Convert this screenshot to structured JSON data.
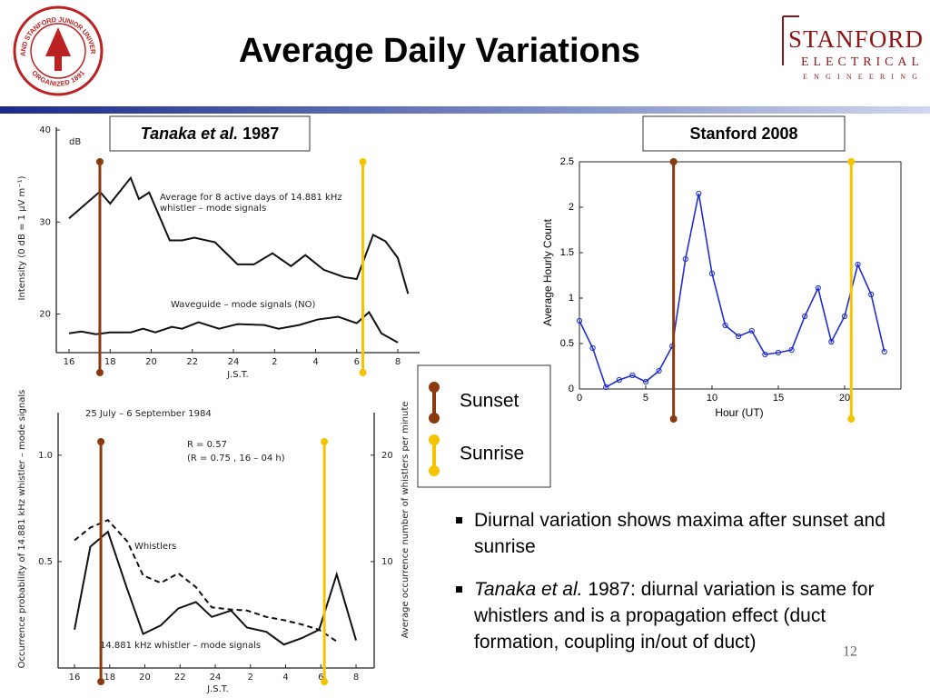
{
  "header": {
    "title": "Average Daily Variations",
    "seal_top": "LELAND STANFORD JUNIOR UNIVERSITY",
    "seal_bottom": "ORGANIZED 1891",
    "logo_line1": "STANFORD",
    "logo_line2": "ELECTRICAL",
    "logo_line3": "ENGINEERING"
  },
  "panels": [
    {
      "italic": "Tanaka et al.",
      "text": " 1987"
    },
    {
      "text": "Stanford 2008"
    }
  ],
  "legend": [
    {
      "label": "Sunset",
      "color": "#8b3a0f"
    },
    {
      "label": "Sunrise",
      "color": "#f5c400"
    }
  ],
  "bullets": [
    {
      "text": "Diurnal variation shows maxima after sunset and sunrise"
    },
    {
      "italic": "Tanaka et al.",
      "text": " 1987: diurnal variation is same for whistlers  and is a  propagation effect  (duct formation, coupling in/out of duct)"
    }
  ],
  "page_number": "12",
  "chart_data": [
    {
      "type": "line",
      "unit": "dB",
      "xlabel": "J.S.T.",
      "ylabel": "Intensity (0 dB = 1 μV m⁻¹)",
      "xlim": [
        15.38,
        33.06
      ],
      "ylim": [
        15.8,
        40.3
      ],
      "xticks": [
        16,
        18,
        20,
        22,
        24,
        {
          "value": 26,
          "label": "2"
        },
        {
          "value": 28,
          "label": "4"
        },
        {
          "value": 30,
          "label": "6"
        },
        {
          "value": 32,
          "label": "8"
        }
      ],
      "yticks": [
        20,
        30,
        40
      ],
      "frame": [
        "left",
        "bottom"
      ],
      "series": [
        {
          "name": "Average for 8 active days of 14.881 kHz whistler – mode signals",
          "color": "#111111",
          "x": [
            16,
            17.5,
            18,
            19,
            19.4,
            19.9,
            20.9,
            21.5,
            22.1,
            23.1,
            24.2,
            25,
            25.9,
            26.8,
            27.5,
            28.4,
            29.4,
            30,
            30.8,
            31.4,
            32,
            32.5
          ],
          "values": [
            30.4,
            33.3,
            32,
            34.8,
            32.5,
            33.2,
            28,
            28,
            28.3,
            27.8,
            25.4,
            25.4,
            26.6,
            25.2,
            26.4,
            24.8,
            24,
            23.8,
            28.6,
            27.9,
            26.1,
            22.2
          ]
        },
        {
          "name": "Waveguide – mode signals (NO)",
          "color": "#111111",
          "x": [
            16,
            16.6,
            17.3,
            18,
            19,
            19.6,
            20.2,
            21,
            21.5,
            22.3,
            23.3,
            24.2,
            25.5,
            26.2,
            27.2,
            28.1,
            29.1,
            30,
            30.6,
            31.2,
            32
          ],
          "values": [
            17.9,
            18.1,
            17.8,
            18,
            18,
            18.4,
            18,
            18.6,
            18.4,
            19.1,
            18.4,
            18.9,
            18.8,
            18.4,
            18.8,
            19.4,
            19.7,
            19,
            20.2,
            17.9,
            16.9
          ]
        }
      ],
      "marker_x": [
        17.5,
        30.3
      ]
    },
    {
      "type": "line",
      "xlabel": "Hour (UT)",
      "ylabel": "Average Hourly Count",
      "xlim": [
        0,
        24.25
      ],
      "ylim": [
        0,
        2.5
      ],
      "xticks": [
        0,
        5,
        10,
        15,
        20
      ],
      "yticks": [
        0,
        0.5,
        1,
        1.5,
        2,
        2.5
      ],
      "frame": [
        "left",
        "bottom",
        "right",
        "top"
      ],
      "series": [
        {
          "color": "#1f2fcf",
          "marker": "circle",
          "x": [
            0,
            1,
            2,
            3,
            4,
            5,
            6,
            7,
            8,
            9,
            10,
            11,
            12,
            13,
            14,
            15,
            16,
            17,
            18,
            19,
            20,
            21,
            22,
            23
          ],
          "values": [
            0.75,
            0.45,
            0.02,
            0.1,
            0.15,
            0.08,
            0.2,
            0.47,
            1.43,
            2.15,
            1.27,
            0.7,
            0.58,
            0.64,
            0.38,
            0.4,
            0.43,
            0.8,
            1.11,
            0.52,
            0.8,
            1.37,
            1.04,
            0.41
          ]
        }
      ],
      "marker_x": [
        7.1,
        20.5
      ]
    },
    {
      "type": "line",
      "title": "25 July – 6 September 1984",
      "xlabel": "J.S.T.",
      "ylabel": "Occurrence probability of 14.881 kHz whistler – mode signals",
      "y2label": "Average occurrence number of whistlers per minute",
      "annotations": [
        "R = 0.57",
        "(R = 0.75 , 16 – 04 h)"
      ],
      "xlim": [
        15.07,
        33.03
      ],
      "ylim": [
        0,
        1.2
      ],
      "y2lim": [
        0,
        24
      ],
      "xticks": [
        16,
        18,
        20,
        22,
        24,
        {
          "value": 26,
          "label": "2"
        },
        {
          "value": 28,
          "label": "4"
        },
        {
          "value": 30,
          "label": "6"
        },
        {
          "value": 32,
          "label": "8"
        }
      ],
      "yticks": [
        0.5,
        {
          "value": 1,
          "label": "1.0"
        }
      ],
      "y2ticks": [
        10,
        20
      ],
      "frame": [
        "left",
        "bottom",
        "right"
      ],
      "series": [
        {
          "name": "Whistlers",
          "color": "#111111",
          "dash": true,
          "axis": "y2",
          "x": [
            16,
            16.9,
            17.9,
            19,
            19.9,
            20.9,
            21.9,
            22.9,
            23.8,
            24.9,
            25.8,
            26.9,
            27.9,
            28.9,
            29.9,
            30.9
          ],
          "values": [
            12,
            13.2,
            13.9,
            11.9,
            8.7,
            8,
            8.9,
            7.6,
            5.7,
            5.5,
            5.4,
            4.8,
            4.5,
            4.1,
            3.6,
            2.5
          ]
        },
        {
          "name": "14.881 kHz whistler – mode signals",
          "color": "#111111",
          "x": [
            16,
            16.9,
            17.9,
            19,
            19.9,
            20.9,
            21.9,
            22.9,
            23.8,
            24.9,
            25.8,
            26.9,
            27.9,
            28.9,
            29.9,
            30.9,
            32
          ],
          "values": [
            0.18,
            0.57,
            0.64,
            0.37,
            0.16,
            0.2,
            0.28,
            0.31,
            0.24,
            0.27,
            0.19,
            0.17,
            0.11,
            0.14,
            0.18,
            0.44,
            0.13
          ]
        }
      ],
      "marker_x": [
        17.5,
        30.2
      ]
    }
  ]
}
